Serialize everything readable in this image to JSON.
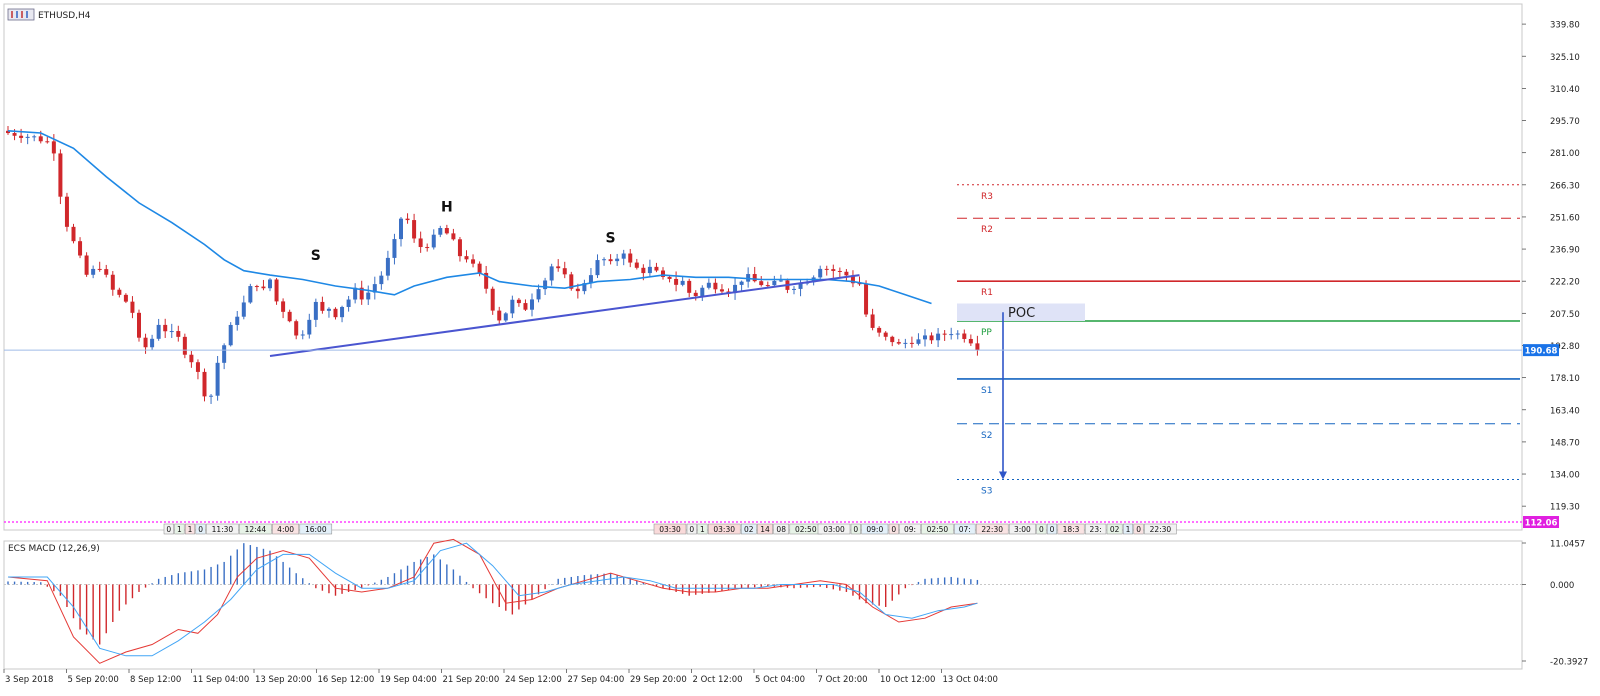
{
  "window": {
    "symbol_title": "ETHUSD,H4",
    "icon": "chart-window-icon"
  },
  "colors": {
    "bull_candle": "#3a6fc4",
    "bear_candle": "#d0272b",
    "moving_average": "#1e88e5",
    "trendline": "#4a55d0",
    "pivot_resistance": "#d0272b",
    "pivot_pp": "#1e9e3e",
    "pivot_support": "#1565c0",
    "poc_fill": "#dfe3f7",
    "price_label_bg": "#1a73e8",
    "magenta_level": "#ff40ff",
    "macd_line": "#e53935",
    "signal_line": "#42a5f5"
  },
  "chart_data": [
    {
      "type": "candlestick",
      "title": "ETHUSD,H4",
      "ylim": [
        112.06,
        349.0
      ],
      "y_ticks": [
        "339.80",
        "325.10",
        "310.40",
        "295.70",
        "281.00",
        "266.30",
        "251.60",
        "236.90",
        "222.20",
        "207.50",
        "192.80",
        "178.10",
        "163.40",
        "148.70",
        "134.00",
        "119.30"
      ],
      "x_ticks": [
        "3 Sep 2018",
        "5 Sep 20:00",
        "8 Sep 12:00",
        "11 Sep 04:00",
        "13 Sep 20:00",
        "16 Sep 12:00",
        "19 Sep 04:00",
        "21 Sep 20:00",
        "24 Sep 12:00",
        "27 Sep 04:00",
        "29 Sep 20:00",
        "2 Oct 12:00",
        "5 Oct 04:00",
        "7 Oct 20:00",
        "10 Oct 12:00",
        "13 Oct 04:00"
      ],
      "price_path": [
        [
          0,
          290
        ],
        [
          2,
          289
        ],
        [
          4,
          288
        ],
        [
          6,
          286
        ],
        [
          7,
          282
        ],
        [
          8,
          262
        ],
        [
          9,
          248
        ],
        [
          10,
          240
        ],
        [
          12,
          225
        ],
        [
          14,
          229
        ],
        [
          15,
          224
        ],
        [
          16,
          218
        ],
        [
          18,
          213
        ],
        [
          19,
          208
        ],
        [
          20,
          195
        ],
        [
          21,
          192
        ],
        [
          22,
          196
        ],
        [
          23,
          203
        ],
        [
          24,
          200
        ],
        [
          26,
          196
        ],
        [
          27,
          190
        ],
        [
          28,
          186
        ],
        [
          29,
          180
        ],
        [
          30,
          171
        ],
        [
          31,
          170
        ],
        [
          32,
          185
        ],
        [
          33,
          193
        ],
        [
          34,
          201
        ],
        [
          35,
          207
        ],
        [
          36,
          212
        ],
        [
          37,
          219
        ],
        [
          38,
          221
        ],
        [
          39,
          218
        ],
        [
          40,
          223
        ],
        [
          41,
          213
        ],
        [
          42,
          209
        ],
        [
          43,
          205
        ],
        [
          44,
          197
        ],
        [
          45,
          199
        ],
        [
          46,
          206
        ],
        [
          47,
          212
        ],
        [
          48,
          208
        ],
        [
          49,
          210
        ],
        [
          50,
          207
        ],
        [
          51,
          211
        ],
        [
          52,
          214
        ],
        [
          53,
          218
        ],
        [
          54,
          215
        ],
        [
          55,
          217
        ],
        [
          56,
          221
        ],
        [
          57,
          225
        ],
        [
          58,
          232
        ],
        [
          59,
          240
        ],
        [
          60,
          251
        ],
        [
          61,
          250
        ],
        [
          62,
          241
        ],
        [
          63,
          238
        ],
        [
          64,
          239
        ],
        [
          65,
          242
        ],
        [
          66,
          246
        ],
        [
          67,
          244
        ],
        [
          68,
          240
        ],
        [
          69,
          234
        ],
        [
          70,
          233
        ],
        [
          71,
          229
        ],
        [
          72,
          225
        ],
        [
          73,
          219
        ],
        [
          74,
          210
        ],
        [
          75,
          205
        ],
        [
          76,
          208
        ],
        [
          77,
          213
        ],
        [
          78,
          211
        ],
        [
          79,
          210
        ],
        [
          80,
          215
        ],
        [
          81,
          220
        ],
        [
          82,
          223
        ],
        [
          83,
          229
        ],
        [
          84,
          227
        ],
        [
          85,
          224
        ],
        [
          86,
          220
        ],
        [
          87,
          217
        ],
        [
          88,
          222
        ],
        [
          89,
          226
        ],
        [
          90,
          231
        ],
        [
          91,
          232
        ],
        [
          92,
          230
        ],
        [
          93,
          233
        ],
        [
          94,
          236
        ],
        [
          95,
          230
        ],
        [
          96,
          228
        ],
        [
          97,
          227
        ],
        [
          98,
          228
        ],
        [
          99,
          226
        ],
        [
          100,
          223
        ],
        [
          101,
          224
        ],
        [
          102,
          221
        ],
        [
          103,
          222
        ],
        [
          104,
          217
        ],
        [
          105,
          216
        ],
        [
          106,
          219
        ],
        [
          107,
          221
        ],
        [
          108,
          220
        ],
        [
          109,
          219
        ],
        [
          110,
          218
        ],
        [
          111,
          220
        ],
        [
          112,
          223
        ],
        [
          113,
          224
        ],
        [
          114,
          222
        ],
        [
          115,
          221
        ],
        [
          116,
          220
        ],
        [
          117,
          221
        ],
        [
          118,
          222
        ],
        [
          119,
          219
        ],
        [
          120,
          220
        ],
        [
          121,
          221
        ],
        [
          122,
          223
        ],
        [
          123,
          225
        ],
        [
          124,
          229
        ],
        [
          125,
          228
        ],
        [
          126,
          227
        ],
        [
          127,
          226
        ],
        [
          128,
          225
        ],
        [
          129,
          222
        ],
        [
          130,
          221
        ],
        [
          131,
          207
        ],
        [
          132,
          200
        ],
        [
          133,
          198
        ],
        [
          134,
          196
        ],
        [
          135,
          195
        ],
        [
          136,
          193
        ],
        [
          137,
          194
        ],
        [
          138,
          195
        ],
        [
          139,
          195
        ],
        [
          140,
          196
        ],
        [
          141,
          196
        ],
        [
          142,
          197
        ],
        [
          143,
          198
        ],
        [
          144,
          199
        ],
        [
          145,
          198
        ],
        [
          146,
          197
        ],
        [
          147,
          195
        ],
        [
          148,
          192
        ]
      ],
      "moving_average": [
        [
          0,
          291
        ],
        [
          5,
          290
        ],
        [
          10,
          283
        ],
        [
          15,
          270
        ],
        [
          20,
          258
        ],
        [
          25,
          249
        ],
        [
          30,
          239
        ],
        [
          33,
          232
        ],
        [
          36,
          227
        ],
        [
          40,
          225
        ],
        [
          45,
          223
        ],
        [
          50,
          220
        ],
        [
          55,
          218
        ],
        [
          59,
          216
        ],
        [
          62,
          220
        ],
        [
          67,
          224
        ],
        [
          72,
          226
        ],
        [
          75,
          222
        ],
        [
          80,
          220
        ],
        [
          85,
          219
        ],
        [
          90,
          222
        ],
        [
          95,
          223
        ],
        [
          100,
          225
        ],
        [
          105,
          224
        ],
        [
          110,
          224
        ],
        [
          115,
          223
        ],
        [
          120,
          223
        ],
        [
          125,
          223
        ],
        [
          129,
          222
        ],
        [
          133,
          220
        ],
        [
          137,
          216
        ],
        [
          141,
          212
        ]
      ],
      "trendline": {
        "from": [
          40,
          188
        ],
        "to": [
          130,
          225
        ]
      },
      "pattern_labels": [
        {
          "text": "S",
          "bar": 47,
          "price": 232
        },
        {
          "text": "H",
          "bar": 67,
          "price": 254
        },
        {
          "text": "S",
          "bar": 92,
          "price": 240
        }
      ],
      "pivot_levels": [
        {
          "label": "R3",
          "value": 266.3,
          "style": "dotted",
          "color": "#d0272b"
        },
        {
          "label": "R2",
          "value": 251.0,
          "style": "dashed",
          "color": "#d0272b"
        },
        {
          "label": "R1",
          "value": 222.2,
          "style": "solid",
          "color": "#d0272b"
        },
        {
          "label": "PP",
          "value": 204.0,
          "style": "solid",
          "color": "#1e9e3e"
        },
        {
          "label": "S1",
          "value": 177.5,
          "style": "solid",
          "color": "#1565c0"
        },
        {
          "label": "S2",
          "value": 157.0,
          "style": "dashed",
          "color": "#1565c0"
        },
        {
          "label": "S3",
          "value": 131.5,
          "style": "dotted",
          "color": "#1565c0"
        }
      ],
      "poc": {
        "label": "POC",
        "top": 212,
        "bottom": 204
      },
      "projection_arrow": {
        "from": 208,
        "to": 131.5
      },
      "current_price": {
        "value": 190.68,
        "label": "190.68"
      },
      "magenta_level": {
        "value": 112.06,
        "label": "112.06"
      },
      "session_labels": {
        "group1": [
          "0",
          "1",
          "1",
          "0",
          "11:30",
          "12:44",
          "4:00",
          "16:00"
        ],
        "group2": [
          "03:30",
          "0",
          "1",
          "03:30",
          "02",
          "14",
          "08",
          "02:50"
        ],
        "group3": [
          "03:00",
          "0",
          "09:0",
          "0",
          "09:",
          "02:50",
          "07:",
          "22:30",
          "3:00",
          "0",
          "0",
          "18:3",
          "23:",
          "02",
          "1",
          "0",
          "22:30"
        ]
      }
    },
    {
      "type": "histogram",
      "title": "ECS MACD (12,26,9)",
      "ylim": [
        -20.3927,
        11.0457
      ],
      "y_ticks": [
        "11.0457",
        "0.000",
        "-20.3927"
      ],
      "histogram_path": [
        [
          0,
          0.8
        ],
        [
          5,
          0.6
        ],
        [
          8,
          -3
        ],
        [
          11,
          -12
        ],
        [
          14,
          -16
        ],
        [
          17,
          -7
        ],
        [
          20,
          -2
        ],
        [
          23,
          1.5
        ],
        [
          26,
          3
        ],
        [
          30,
          4
        ],
        [
          33,
          6
        ],
        [
          36,
          11
        ],
        [
          40,
          9
        ],
        [
          44,
          3
        ],
        [
          47,
          -1
        ],
        [
          50,
          -3
        ],
        [
          54,
          -1
        ],
        [
          58,
          2
        ],
        [
          62,
          6
        ],
        [
          65,
          8
        ],
        [
          68,
          4
        ],
        [
          71,
          -1
        ],
        [
          74,
          -5
        ],
        [
          77,
          -8
        ],
        [
          80,
          -4
        ],
        [
          84,
          1.5
        ],
        [
          88,
          2.5
        ],
        [
          92,
          3
        ],
        [
          96,
          1
        ],
        [
          100,
          -1
        ],
        [
          104,
          -3
        ],
        [
          108,
          -2
        ],
        [
          112,
          -1
        ],
        [
          116,
          -0.5
        ],
        [
          120,
          -1
        ],
        [
          124,
          -0.6
        ],
        [
          128,
          -2
        ],
        [
          131,
          -5
        ],
        [
          134,
          -6
        ],
        [
          137,
          -1
        ],
        [
          140,
          1.5
        ],
        [
          144,
          2
        ],
        [
          148,
          1.2
        ]
      ],
      "macd_line": [
        [
          0,
          2
        ],
        [
          6,
          1
        ],
        [
          10,
          -14
        ],
        [
          14,
          -21
        ],
        [
          18,
          -18
        ],
        [
          22,
          -16
        ],
        [
          26,
          -12
        ],
        [
          29,
          -13
        ],
        [
          32,
          -8
        ],
        [
          35,
          2
        ],
        [
          38,
          7
        ],
        [
          42,
          9
        ],
        [
          46,
          7
        ],
        [
          50,
          -1
        ],
        [
          54,
          -2
        ],
        [
          58,
          -1
        ],
        [
          62,
          2
        ],
        [
          65,
          11
        ],
        [
          68,
          12
        ],
        [
          72,
          8
        ],
        [
          76,
          -5
        ],
        [
          80,
          -4
        ],
        [
          84,
          -1
        ],
        [
          88,
          1
        ],
        [
          92,
          3
        ],
        [
          96,
          1
        ],
        [
          100,
          -1
        ],
        [
          104,
          -2
        ],
        [
          108,
          -2
        ],
        [
          112,
          -1
        ],
        [
          116,
          -1
        ],
        [
          120,
          0
        ],
        [
          124,
          1
        ],
        [
          128,
          0
        ],
        [
          132,
          -6
        ],
        [
          136,
          -10
        ],
        [
          140,
          -9
        ],
        [
          144,
          -6
        ],
        [
          148,
          -5
        ]
      ],
      "signal_line": [
        [
          0,
          2
        ],
        [
          6,
          2
        ],
        [
          10,
          -6
        ],
        [
          14,
          -17
        ],
        [
          18,
          -19
        ],
        [
          22,
          -19
        ],
        [
          26,
          -15
        ],
        [
          30,
          -10
        ],
        [
          34,
          -4
        ],
        [
          38,
          4
        ],
        [
          42,
          8
        ],
        [
          46,
          8
        ],
        [
          50,
          3
        ],
        [
          54,
          -1
        ],
        [
          58,
          -1
        ],
        [
          62,
          1
        ],
        [
          66,
          9
        ],
        [
          70,
          11
        ],
        [
          74,
          5
        ],
        [
          78,
          -3
        ],
        [
          82,
          -2
        ],
        [
          86,
          0
        ],
        [
          90,
          1
        ],
        [
          94,
          2
        ],
        [
          98,
          1
        ],
        [
          102,
          -1
        ],
        [
          106,
          -1
        ],
        [
          110,
          -1
        ],
        [
          114,
          -1
        ],
        [
          118,
          0
        ],
        [
          122,
          0
        ],
        [
          126,
          0
        ],
        [
          130,
          -2
        ],
        [
          134,
          -8
        ],
        [
          138,
          -9
        ],
        [
          142,
          -7
        ],
        [
          146,
          -6
        ],
        [
          148,
          -5
        ]
      ]
    }
  ]
}
